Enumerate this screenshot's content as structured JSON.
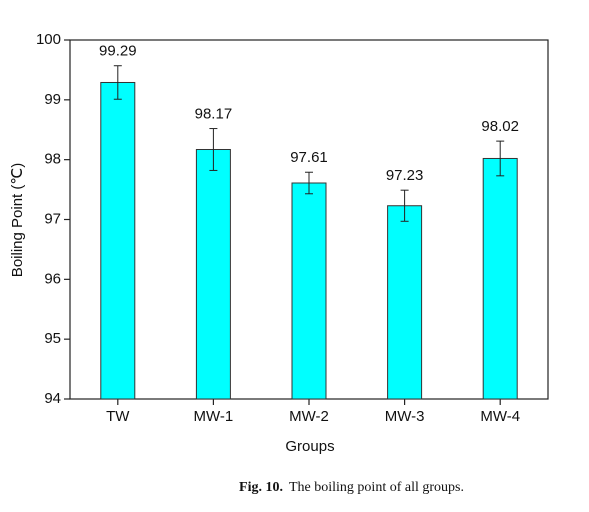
{
  "chart_data": {
    "type": "bar",
    "categories": [
      "TW",
      "MW-1",
      "MW-2",
      "MW-3",
      "MW-4"
    ],
    "values": [
      99.29,
      98.17,
      97.61,
      97.23,
      98.02
    ],
    "errors": [
      0.28,
      0.35,
      0.18,
      0.26,
      0.29
    ],
    "color": "#00ffff",
    "xlabel": "Groups",
    "ylabel": "Boiling Point (℃)",
    "ylim": [
      94,
      100
    ],
    "yticks": [
      94,
      95,
      96,
      97,
      98,
      99,
      100
    ],
    "caption_label": "Fig. 10.",
    "caption": "The boiling point of all groups."
  }
}
